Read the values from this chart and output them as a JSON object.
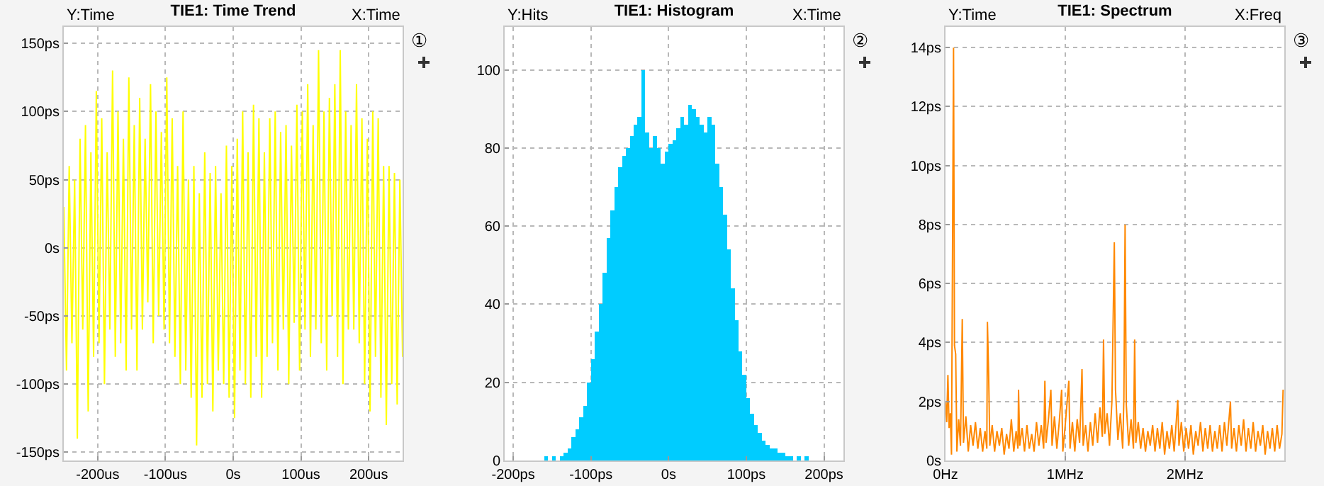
{
  "chart_data": [
    {
      "type": "line",
      "title": "TIE1: Time Trend",
      "ylabel": "Y:Time",
      "xlabel": "X:Time",
      "annotations": [
        "①"
      ],
      "grid": true,
      "marker": "none",
      "line_style": "solid",
      "xlim": [
        -250,
        250
      ],
      "xticks": [
        {
          "value": -200,
          "label": "-200us"
        },
        {
          "value": -100,
          "label": "-100us"
        },
        {
          "value": 0,
          "label": "0s"
        },
        {
          "value": 100,
          "label": "100us"
        },
        {
          "value": 200,
          "label": "200us"
        }
      ],
      "ylim": [
        -156,
        162
      ],
      "yticks": [
        {
          "value": -150,
          "label": "-150ps"
        },
        {
          "value": -100,
          "label": "-100ps"
        },
        {
          "value": -50,
          "label": "-50ps"
        },
        {
          "value": 0,
          "label": "0s"
        },
        {
          "value": 50,
          "label": "50ps"
        },
        {
          "value": 100,
          "label": "100ps"
        },
        {
          "value": 150,
          "label": "150ps"
        }
      ],
      "x": [
        -250,
        -246,
        -242,
        -238,
        -234,
        -230,
        -226,
        -222,
        -218,
        -214,
        -210,
        -206,
        -202,
        -198,
        -194,
        -190,
        -186,
        -182,
        -178,
        -174,
        -170,
        -166,
        -162,
        -158,
        -154,
        -150,
        -146,
        -142,
        -138,
        -134,
        -130,
        -126,
        -122,
        -118,
        -114,
        -110,
        -106,
        -102,
        -98,
        -94,
        -90,
        -86,
        -82,
        -78,
        -74,
        -70,
        -66,
        -62,
        -58,
        -54,
        -50,
        -46,
        -42,
        -38,
        -34,
        -30,
        -26,
        -22,
        -18,
        -14,
        -10,
        -6,
        -2,
        2,
        6,
        10,
        14,
        18,
        22,
        26,
        30,
        34,
        38,
        42,
        46,
        50,
        54,
        58,
        62,
        66,
        70,
        74,
        78,
        82,
        86,
        90,
        94,
        98,
        102,
        106,
        110,
        114,
        118,
        122,
        126,
        130,
        134,
        138,
        142,
        146,
        150,
        154,
        158,
        162,
        166,
        170,
        174,
        178,
        182,
        186,
        190,
        194,
        198,
        202,
        206,
        210,
        214,
        218,
        222,
        226,
        230,
        234,
        238,
        242,
        246,
        250
      ],
      "series": [
        {
          "color": "#ffff00",
          "values": [
            30,
            -90,
            60,
            -70,
            50,
            -140,
            80,
            -60,
            90,
            -120,
            70,
            -80,
            115,
            -70,
            95,
            -100,
            70,
            -60,
            130,
            -80,
            100,
            -70,
            80,
            -90,
            125,
            -60,
            90,
            -90,
            110,
            -60,
            80,
            -40,
            120,
            -70,
            100,
            -50,
            85,
            -60,
            125,
            -70,
            95,
            -80,
            60,
            -100,
            100,
            -90,
            50,
            -110,
            60,
            -145,
            40,
            -110,
            70,
            -100,
            55,
            -120,
            60,
            -90,
            40,
            -100,
            75,
            -110,
            60,
            -125,
            80,
            -90,
            100,
            -100,
            70,
            -110,
            105,
            -80,
            95,
            -110,
            70,
            -80,
            95,
            -70,
            100,
            -90,
            85,
            -60,
            90,
            -100,
            75,
            -55,
            105,
            -90,
            100,
            -60,
            120,
            -80,
            90,
            -60,
            145,
            -70,
            100,
            -90,
            110,
            -50,
            120,
            -80,
            145,
            -100,
            100,
            -60,
            90,
            -60,
            120,
            -70,
            95,
            -100,
            80,
            -120,
            100,
            -80,
            95,
            -110,
            60,
            -130,
            60,
            -100,
            55,
            -115,
            50,
            -80
          ]
        }
      ]
    },
    {
      "type": "histogram",
      "title": "TIE1: Histogram",
      "ylabel": "Y:Hits",
      "xlabel": "X:Time",
      "annotations": [
        "②"
      ],
      "grid": true,
      "color": "#00ccff",
      "xlim": [
        -211,
        225
      ],
      "xticks": [
        {
          "value": -200,
          "label": "-200ps"
        },
        {
          "value": -100,
          "label": "-100ps"
        },
        {
          "value": 0,
          "label": "0s"
        },
        {
          "value": 100,
          "label": "100ps"
        },
        {
          "value": 200,
          "label": "200ps"
        }
      ],
      "ylim": [
        0,
        111
      ],
      "yticks": [
        0,
        20,
        40,
        60,
        80,
        100
      ],
      "bins": [
        -160,
        -155,
        -150,
        -145,
        -140,
        -135,
        -130,
        -125,
        -120,
        -115,
        -110,
        -105,
        -100,
        -95,
        -90,
        -85,
        -80,
        -75,
        -70,
        -65,
        -60,
        -55,
        -50,
        -45,
        -40,
        -35,
        -30,
        -25,
        -20,
        -15,
        -10,
        -5,
        0,
        5,
        10,
        15,
        20,
        25,
        30,
        35,
        40,
        45,
        50,
        55,
        60,
        65,
        70,
        75,
        80,
        85,
        90,
        95,
        100,
        105,
        110,
        115,
        120,
        125,
        130,
        135,
        140,
        145,
        150,
        155,
        160,
        165,
        170,
        175,
        180
      ],
      "values": [
        1,
        0,
        1,
        0,
        1,
        2,
        3,
        6,
        8,
        11,
        14,
        20,
        26,
        33,
        40,
        48,
        57,
        64,
        70,
        75,
        78,
        80,
        83,
        86,
        88,
        100,
        84,
        80,
        83,
        80,
        76,
        79,
        81,
        82,
        85,
        88,
        86,
        91,
        90,
        88,
        86,
        84,
        88,
        86,
        76,
        70,
        63,
        54,
        44,
        36,
        28,
        22,
        16,
        12,
        9,
        7,
        5,
        4,
        3,
        3,
        2,
        2,
        1,
        1,
        0,
        1,
        0,
        1
      ]
    },
    {
      "type": "line",
      "title": "TIE1: Spectrum",
      "ylabel": "Y:Time",
      "xlabel": "X:Freq",
      "annotations": [
        "③"
      ],
      "grid": true,
      "marker": "none",
      "line_style": "solid",
      "xlim": [
        0,
        2.83
      ],
      "xticks": [
        {
          "value": 0,
          "label": "0Hz"
        },
        {
          "value": 1,
          "label": "1MHz"
        },
        {
          "value": 2,
          "label": "2MHz"
        }
      ],
      "ylim": [
        0,
        14.7
      ],
      "yticks": [
        {
          "value": 0,
          "label": "0s"
        },
        {
          "value": 2,
          "label": "2ps"
        },
        {
          "value": 4,
          "label": "4ps"
        },
        {
          "value": 6,
          "label": "6ps"
        },
        {
          "value": 8,
          "label": "8ps"
        },
        {
          "value": 10,
          "label": "10ps"
        },
        {
          "value": 12,
          "label": "12ps"
        },
        {
          "value": 14,
          "label": "14ps"
        }
      ],
      "x": [
        0,
        0.01,
        0.02,
        0.03,
        0.04,
        0.05,
        0.06,
        0.067,
        0.075,
        0.085,
        0.095,
        0.11,
        0.125,
        0.14,
        0.15,
        0.17,
        0.19,
        0.21,
        0.23,
        0.25,
        0.27,
        0.29,
        0.31,
        0.33,
        0.345,
        0.35,
        0.36,
        0.37,
        0.39,
        0.41,
        0.43,
        0.45,
        0.47,
        0.49,
        0.51,
        0.53,
        0.55,
        0.57,
        0.59,
        0.605,
        0.61,
        0.62,
        0.64,
        0.66,
        0.68,
        0.7,
        0.72,
        0.74,
        0.76,
        0.78,
        0.8,
        0.82,
        0.83,
        0.84,
        0.86,
        0.88,
        0.89,
        0.91,
        0.93,
        0.95,
        0.97,
        0.98,
        1.0,
        1.03,
        1.04,
        1.06,
        1.08,
        1.1,
        1.12,
        1.14,
        1.15,
        1.17,
        1.19,
        1.21,
        1.23,
        1.25,
        1.27,
        1.29,
        1.31,
        1.32,
        1.33,
        1.35,
        1.37,
        1.39,
        1.41,
        1.42,
        1.44,
        1.46,
        1.48,
        1.49,
        1.5,
        1.51,
        1.53,
        1.55,
        1.57,
        1.58,
        1.59,
        1.61,
        1.63,
        1.65,
        1.67,
        1.69,
        1.71,
        1.73,
        1.75,
        1.77,
        1.79,
        1.81,
        1.83,
        1.85,
        1.87,
        1.89,
        1.91,
        1.94,
        1.95,
        1.97,
        1.99,
        2.01,
        2.03,
        2.05,
        2.07,
        2.09,
        2.11,
        2.13,
        2.15,
        2.17,
        2.19,
        2.21,
        2.23,
        2.25,
        2.27,
        2.29,
        2.31,
        2.33,
        2.35,
        2.38,
        2.39,
        2.41,
        2.43,
        2.45,
        2.47,
        2.49,
        2.51,
        2.53,
        2.55,
        2.57,
        2.59,
        2.61,
        2.63,
        2.65,
        2.67,
        2.69,
        2.71,
        2.73,
        2.75,
        2.77,
        2.79,
        2.81,
        2.82
      ],
      "series": [
        {
          "color": "#ff8800",
          "values": [
            2.0,
            1.3,
            2.9,
            1.1,
            1.6,
            0.2,
            8.3,
            14.0,
            3.9,
            3.6,
            0.3,
            1.4,
            0.5,
            4.8,
            0.6,
            1.5,
            0.3,
            1.2,
            0.5,
            1.3,
            0.4,
            1.1,
            0.3,
            1.0,
            0.4,
            4.7,
            3.0,
            0.5,
            1.2,
            0.3,
            1.0,
            0.5,
            1.1,
            0.2,
            0.9,
            0.4,
            1.4,
            0.3,
            1.0,
            0.4,
            2.4,
            0.5,
            1.1,
            0.3,
            1.2,
            0.4,
            0.9,
            0.3,
            1.3,
            0.5,
            1.2,
            0.4,
            2.7,
            0.6,
            1.4,
            2.4,
            0.5,
            1.5,
            0.4,
            1.3,
            2.4,
            0.3,
            1.2,
            2.7,
            0.4,
            1.3,
            0.3,
            1.4,
            0.6,
            3.1,
            0.5,
            1.2,
            0.3,
            1.3,
            0.5,
            1.6,
            0.6,
            1.8,
            0.8,
            4.1,
            0.9,
            1.6,
            0.5,
            2.0,
            7.4,
            2.4,
            0.7,
            1.6,
            0.4,
            2.1,
            8.0,
            1.9,
            0.5,
            1.4,
            0.4,
            4.1,
            0.6,
            1.3,
            0.4,
            1.1,
            0.3,
            1.0,
            0.5,
            1.2,
            0.3,
            1.1,
            0.4,
            1.3,
            0.2,
            1.0,
            0.4,
            1.2,
            0.3,
            2.05,
            0.5,
            1.3,
            0.3,
            1.1,
            0.4,
            1.2,
            0.2,
            1.0,
            0.5,
            1.3,
            0.3,
            1.1,
            0.4,
            1.2,
            0.3,
            1.0,
            0.4,
            1.2,
            0.3,
            1.3,
            0.5,
            2.0,
            0.4,
            1.1,
            0.3,
            1.2,
            0.5,
            1.4,
            0.3,
            1.1,
            0.4,
            1.3,
            0.3,
            1.0,
            0.5,
            1.2,
            0.2,
            1.0,
            0.4,
            1.1,
            0.3,
            1.2,
            0.4,
            0.9,
            2.4
          ]
        }
      ]
    }
  ]
}
